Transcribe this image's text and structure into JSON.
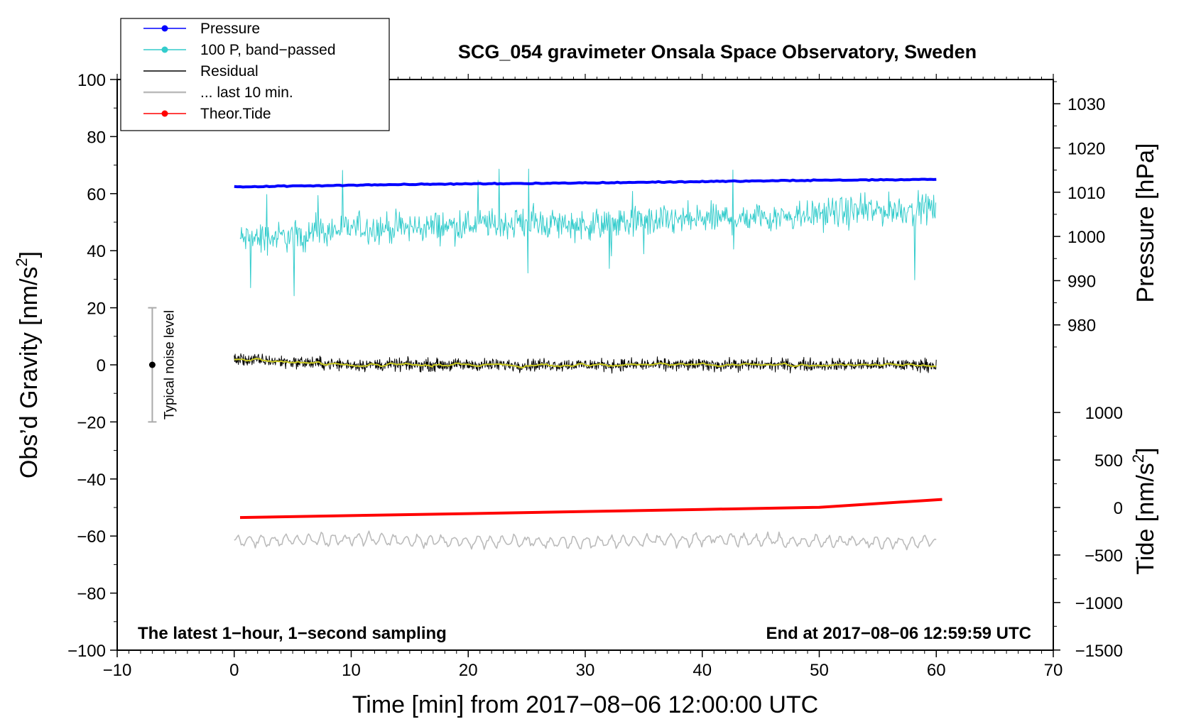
{
  "chart_data": {
    "type": "line",
    "title": "SCG_054 gravimeter Onsala Space Observatory, Sweden",
    "xlabel": "Time [min] from 2017−08−06 12:00:00 UTC",
    "xlim": [
      -10,
      70
    ],
    "x_ticks": [
      -10,
      0,
      10,
      20,
      30,
      40,
      50,
      60,
      70
    ],
    "x_tick_labels": [
      "−10",
      "0",
      "10",
      "20",
      "30",
      "40",
      "50",
      "60",
      "70"
    ],
    "y_left": {
      "label": "Obs’d Gravity [nm/s",
      "label_sup": "2",
      "label_end": "]",
      "lim": [
        -100,
        100
      ],
      "ticks": [
        -100,
        -80,
        -60,
        -40,
        -20,
        0,
        20,
        40,
        60,
        80,
        100
      ],
      "tick_labels": [
        "−100",
        "−80",
        "−60",
        "−40",
        "−20",
        "0",
        "20",
        "40",
        "60",
        "80",
        "100"
      ]
    },
    "y_right_pressure": {
      "label": "Pressure [hPa]",
      "ticks": [
        980,
        990,
        1000,
        1010,
        1020,
        1030
      ],
      "tick_labels": [
        "980",
        "990",
        "1000",
        "1010",
        "1020",
        "1030"
      ],
      "map_left_per_unit": 1.55,
      "map_offset": 1000,
      "map_left_at_offset": 45
    },
    "y_right_tide": {
      "label": "Tide [nm/s",
      "label_sup": "2",
      "label_end": "]",
      "ticks": [
        -1500,
        -1000,
        -500,
        0,
        500,
        1000
      ],
      "tick_labels": [
        "−1500",
        "−1000",
        "−500",
        "0",
        "500",
        "1000"
      ],
      "map_left_per_unit": 0.0333,
      "map_left_at_zero": -50
    },
    "series": [
      {
        "name": "Pressure",
        "color": "#0000ff",
        "axis": "pressure",
        "x": [
          0,
          10,
          20,
          30,
          40,
          50,
          60
        ],
        "values": [
          1011.2,
          1011.6,
          1011.9,
          1012.1,
          1012.4,
          1012.7,
          1012.9
        ]
      },
      {
        "name": "100 P, band−passed",
        "color": "#33cccc",
        "axis": "left",
        "x": [
          0.5,
          5,
          10,
          15,
          20,
          25,
          30,
          35,
          40,
          45,
          50,
          55,
          60
        ],
        "values": [
          44,
          45,
          48,
          48,
          49,
          50,
          49,
          50,
          51,
          52,
          53,
          54,
          55
        ]
      },
      {
        "name": "Residual",
        "color": "#000000",
        "axis": "left",
        "x": [
          0,
          10,
          20,
          30,
          40,
          50,
          60
        ],
        "values": [
          2,
          0,
          0,
          0,
          0,
          0,
          0
        ]
      },
      {
        "name": "... last 10 min.",
        "color": "#bbbbbb",
        "axis": "left",
        "x": [
          0,
          10,
          20,
          30,
          40,
          50,
          60
        ],
        "values": [
          -62,
          -61,
          -62,
          -62,
          -61,
          -62,
          -62
        ]
      },
      {
        "name": "Theor.Tide",
        "color": "#ff0000",
        "axis": "tide",
        "x": [
          0.5,
          10,
          20,
          30,
          40,
          50,
          60.5
        ],
        "values": [
          -105,
          -85,
          -64,
          -42,
          -20,
          2,
          85
        ]
      }
    ],
    "legend_position": "top-left",
    "noise_annotation": {
      "label": "Typical noise level",
      "x": -7,
      "center": 0,
      "half_range": 20
    },
    "annotation_left": "The latest 1−hour, 1−second sampling",
    "annotation_right": "End at 2017−08−06 12:59:59 UTC"
  }
}
